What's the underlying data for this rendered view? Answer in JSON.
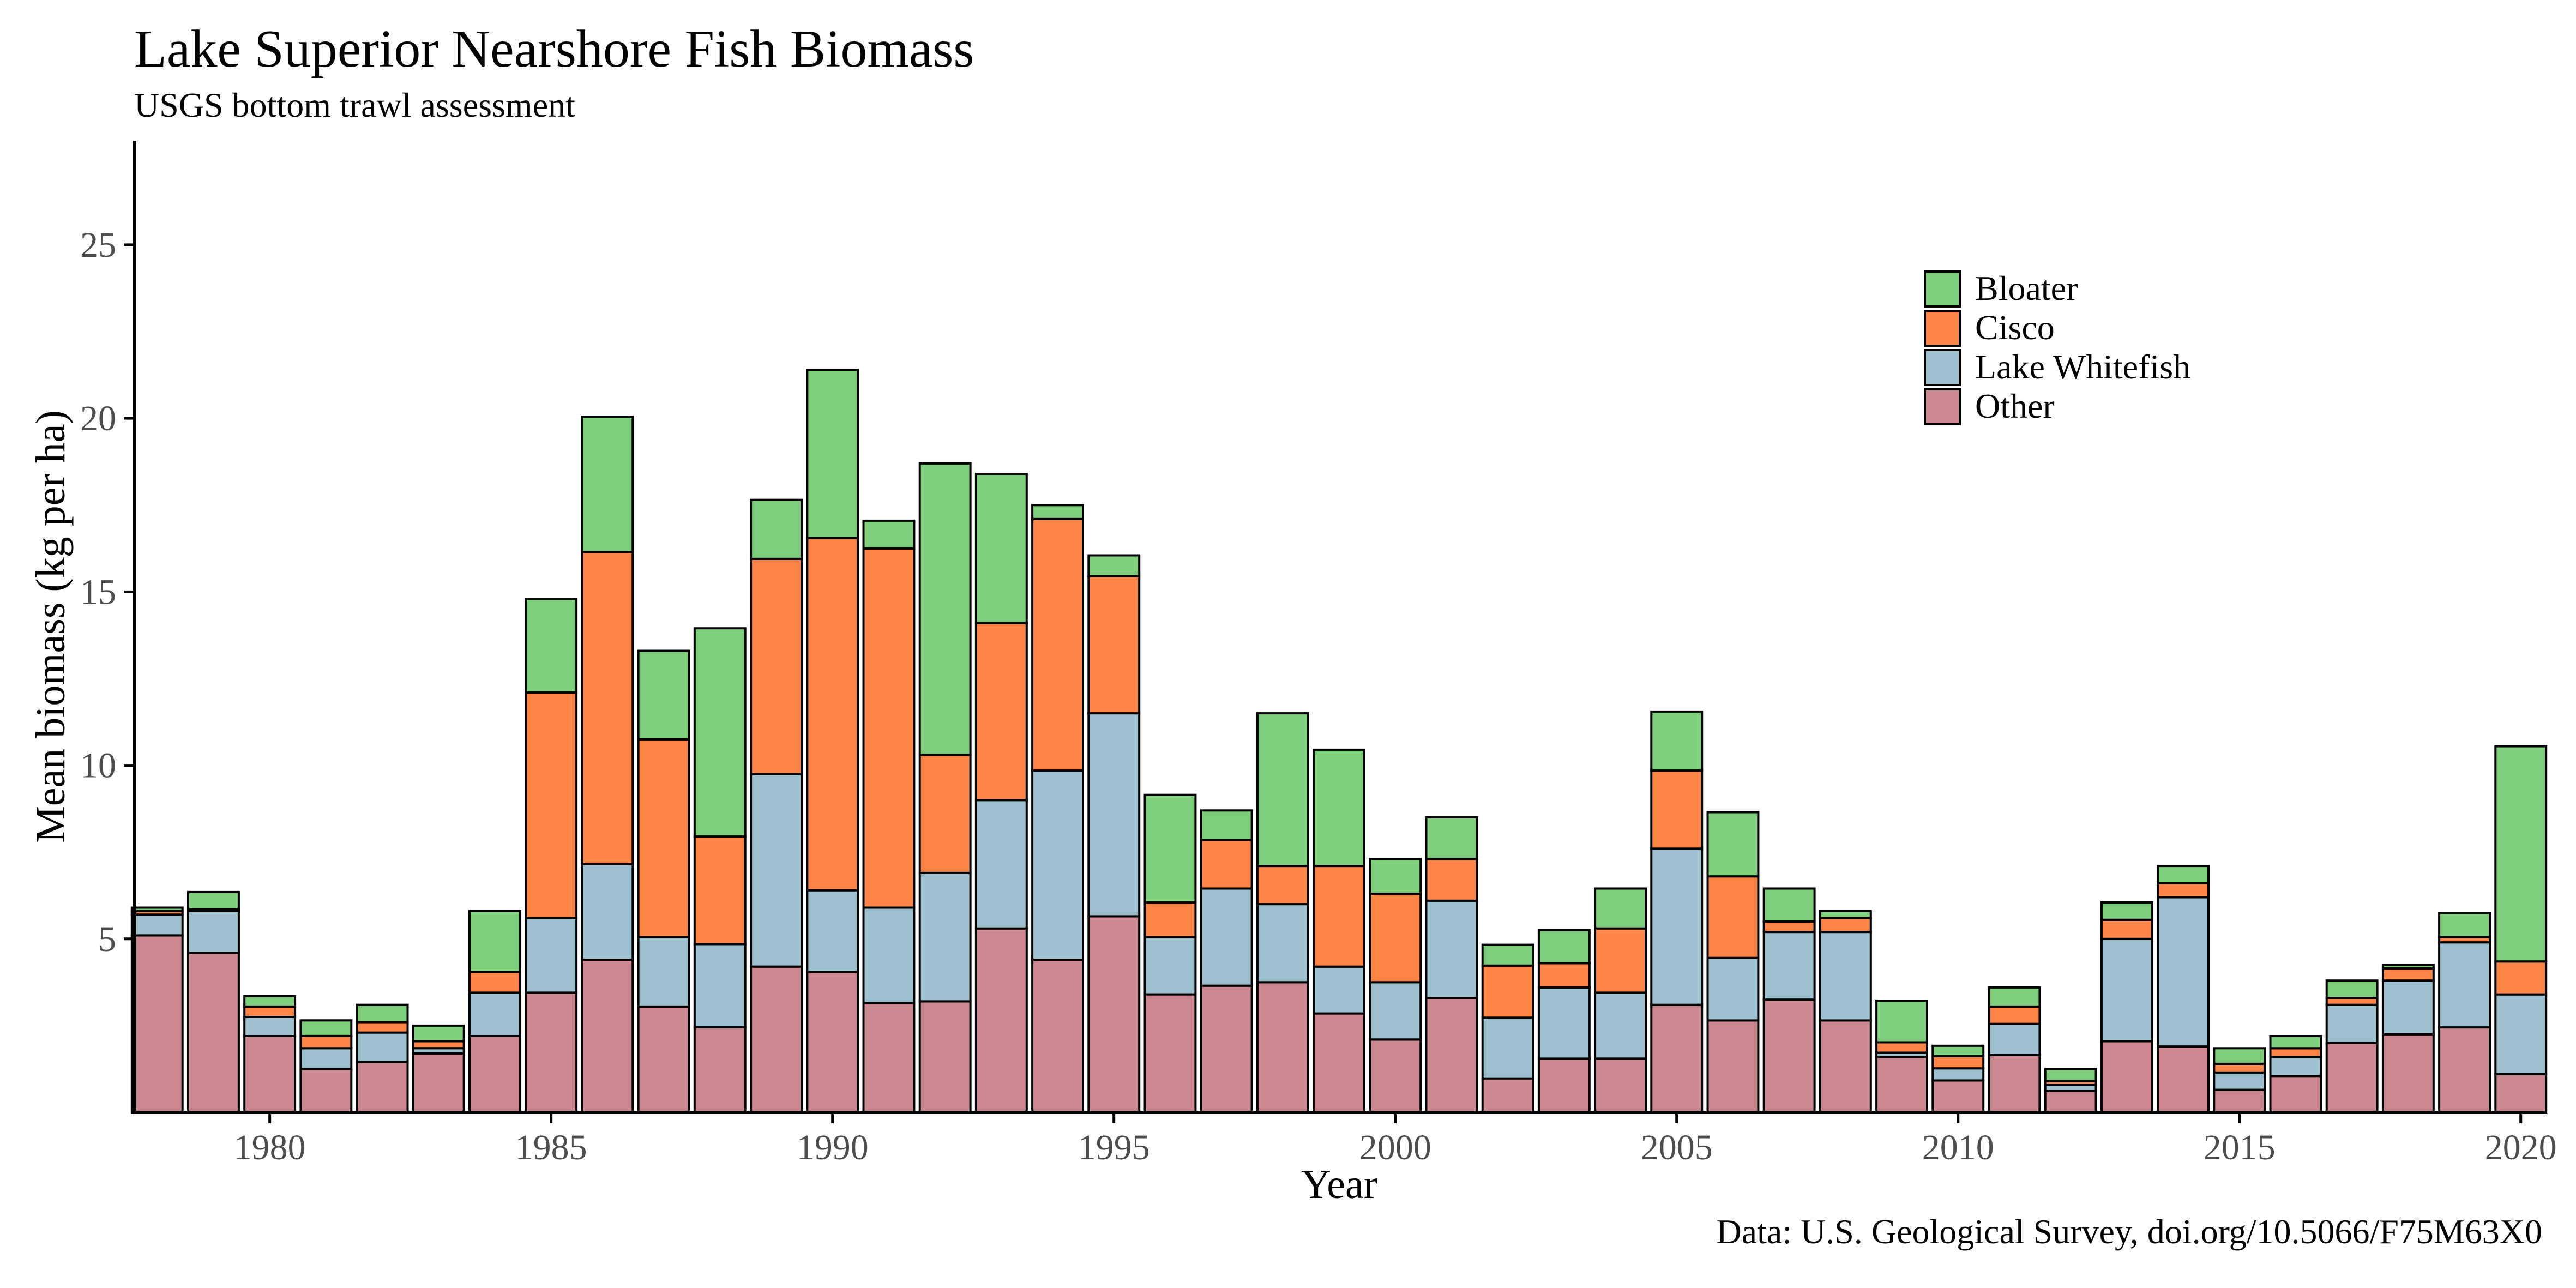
{
  "chart_data": {
    "type": "bar",
    "stacked": true,
    "title": "Lake Superior Nearshore Fish Biomass",
    "subtitle": "USGS bottom trawl assessment",
    "caption": "Data: U.S. Geological Survey, doi.org/10.5066/F75M63X0",
    "xlabel": "Year",
    "ylabel": "Mean biomass (kg per ha)",
    "ylim": [
      0,
      28
    ],
    "xlim": [
      1977.6,
      2020.4
    ],
    "yticks": [
      5,
      10,
      15,
      20,
      25
    ],
    "xticks": [
      1980,
      1985,
      1990,
      1995,
      2000,
      2005,
      2010,
      2015,
      2020
    ],
    "grid": false,
    "legend_position": "top-right",
    "legend_order": [
      "Bloater",
      "Cisco",
      "Lake Whitefish",
      "Other"
    ],
    "categories": [
      1978,
      1979,
      1980,
      1981,
      1982,
      1983,
      1984,
      1985,
      1986,
      1987,
      1988,
      1989,
      1990,
      1991,
      1992,
      1993,
      1994,
      1995,
      1996,
      1997,
      1998,
      1999,
      2000,
      2001,
      2002,
      2003,
      2004,
      2005,
      2006,
      2007,
      2008,
      2009,
      2010,
      2011,
      2012,
      2013,
      2014,
      2015,
      2016,
      2017,
      2018,
      2019,
      2020
    ],
    "series": [
      {
        "name": "Other",
        "color": "#CC8891",
        "values": [
          5.1,
          4.6,
          2.2,
          1.25,
          1.45,
          1.7,
          2.2,
          3.45,
          4.4,
          3.05,
          2.45,
          4.2,
          4.05,
          3.15,
          3.2,
          5.3,
          4.4,
          5.65,
          3.4,
          3.65,
          3.75,
          2.85,
          2.1,
          3.3,
          0.98,
          1.55,
          1.55,
          3.1,
          2.65,
          3.25,
          2.65,
          1.6,
          0.92,
          1.65,
          0.62,
          2.05,
          1.9,
          0.65,
          1.05,
          2.0,
          2.25,
          2.45,
          1.1
        ]
      },
      {
        "name": "Lake Whitefish",
        "color": "#9EC1CF",
        "values": [
          0.6,
          1.2,
          0.55,
          0.6,
          0.85,
          0.15,
          1.25,
          2.15,
          2.75,
          2.0,
          2.4,
          5.55,
          2.35,
          2.75,
          3.7,
          3.7,
          5.45,
          5.85,
          1.65,
          2.8,
          2.25,
          1.35,
          1.65,
          2.8,
          1.75,
          2.05,
          1.9,
          4.5,
          1.8,
          1.95,
          2.55,
          0.12,
          0.35,
          0.9,
          0.18,
          2.95,
          4.3,
          0.5,
          0.55,
          1.1,
          1.55,
          2.45,
          2.3
        ]
      },
      {
        "name": "Cisco",
        "color": "#FF8549",
        "values": [
          0.1,
          0.05,
          0.3,
          0.35,
          0.3,
          0.2,
          0.6,
          6.5,
          9.0,
          5.7,
          3.1,
          6.2,
          10.15,
          10.35,
          3.4,
          5.1,
          7.25,
          3.95,
          1.0,
          1.4,
          1.1,
          2.9,
          2.55,
          1.2,
          1.5,
          0.7,
          1.85,
          2.25,
          2.35,
          0.3,
          0.4,
          0.3,
          0.35,
          0.5,
          0.1,
          0.55,
          0.4,
          0.25,
          0.25,
          0.2,
          0.35,
          0.15,
          0.95
        ]
      },
      {
        "name": "Bloater",
        "color": "#7ECE7B",
        "values": [
          0.1,
          0.5,
          0.3,
          0.45,
          0.5,
          0.45,
          1.75,
          2.7,
          3.9,
          2.55,
          6.0,
          1.7,
          4.85,
          0.8,
          8.4,
          4.3,
          0.4,
          0.6,
          3.1,
          0.85,
          4.4,
          3.35,
          1.0,
          1.2,
          0.6,
          0.95,
          1.15,
          1.7,
          1.85,
          0.95,
          0.2,
          1.2,
          0.3,
          0.55,
          0.35,
          0.5,
          0.5,
          0.45,
          0.35,
          0.5,
          0.1,
          0.7,
          6.2
        ]
      }
    ]
  }
}
